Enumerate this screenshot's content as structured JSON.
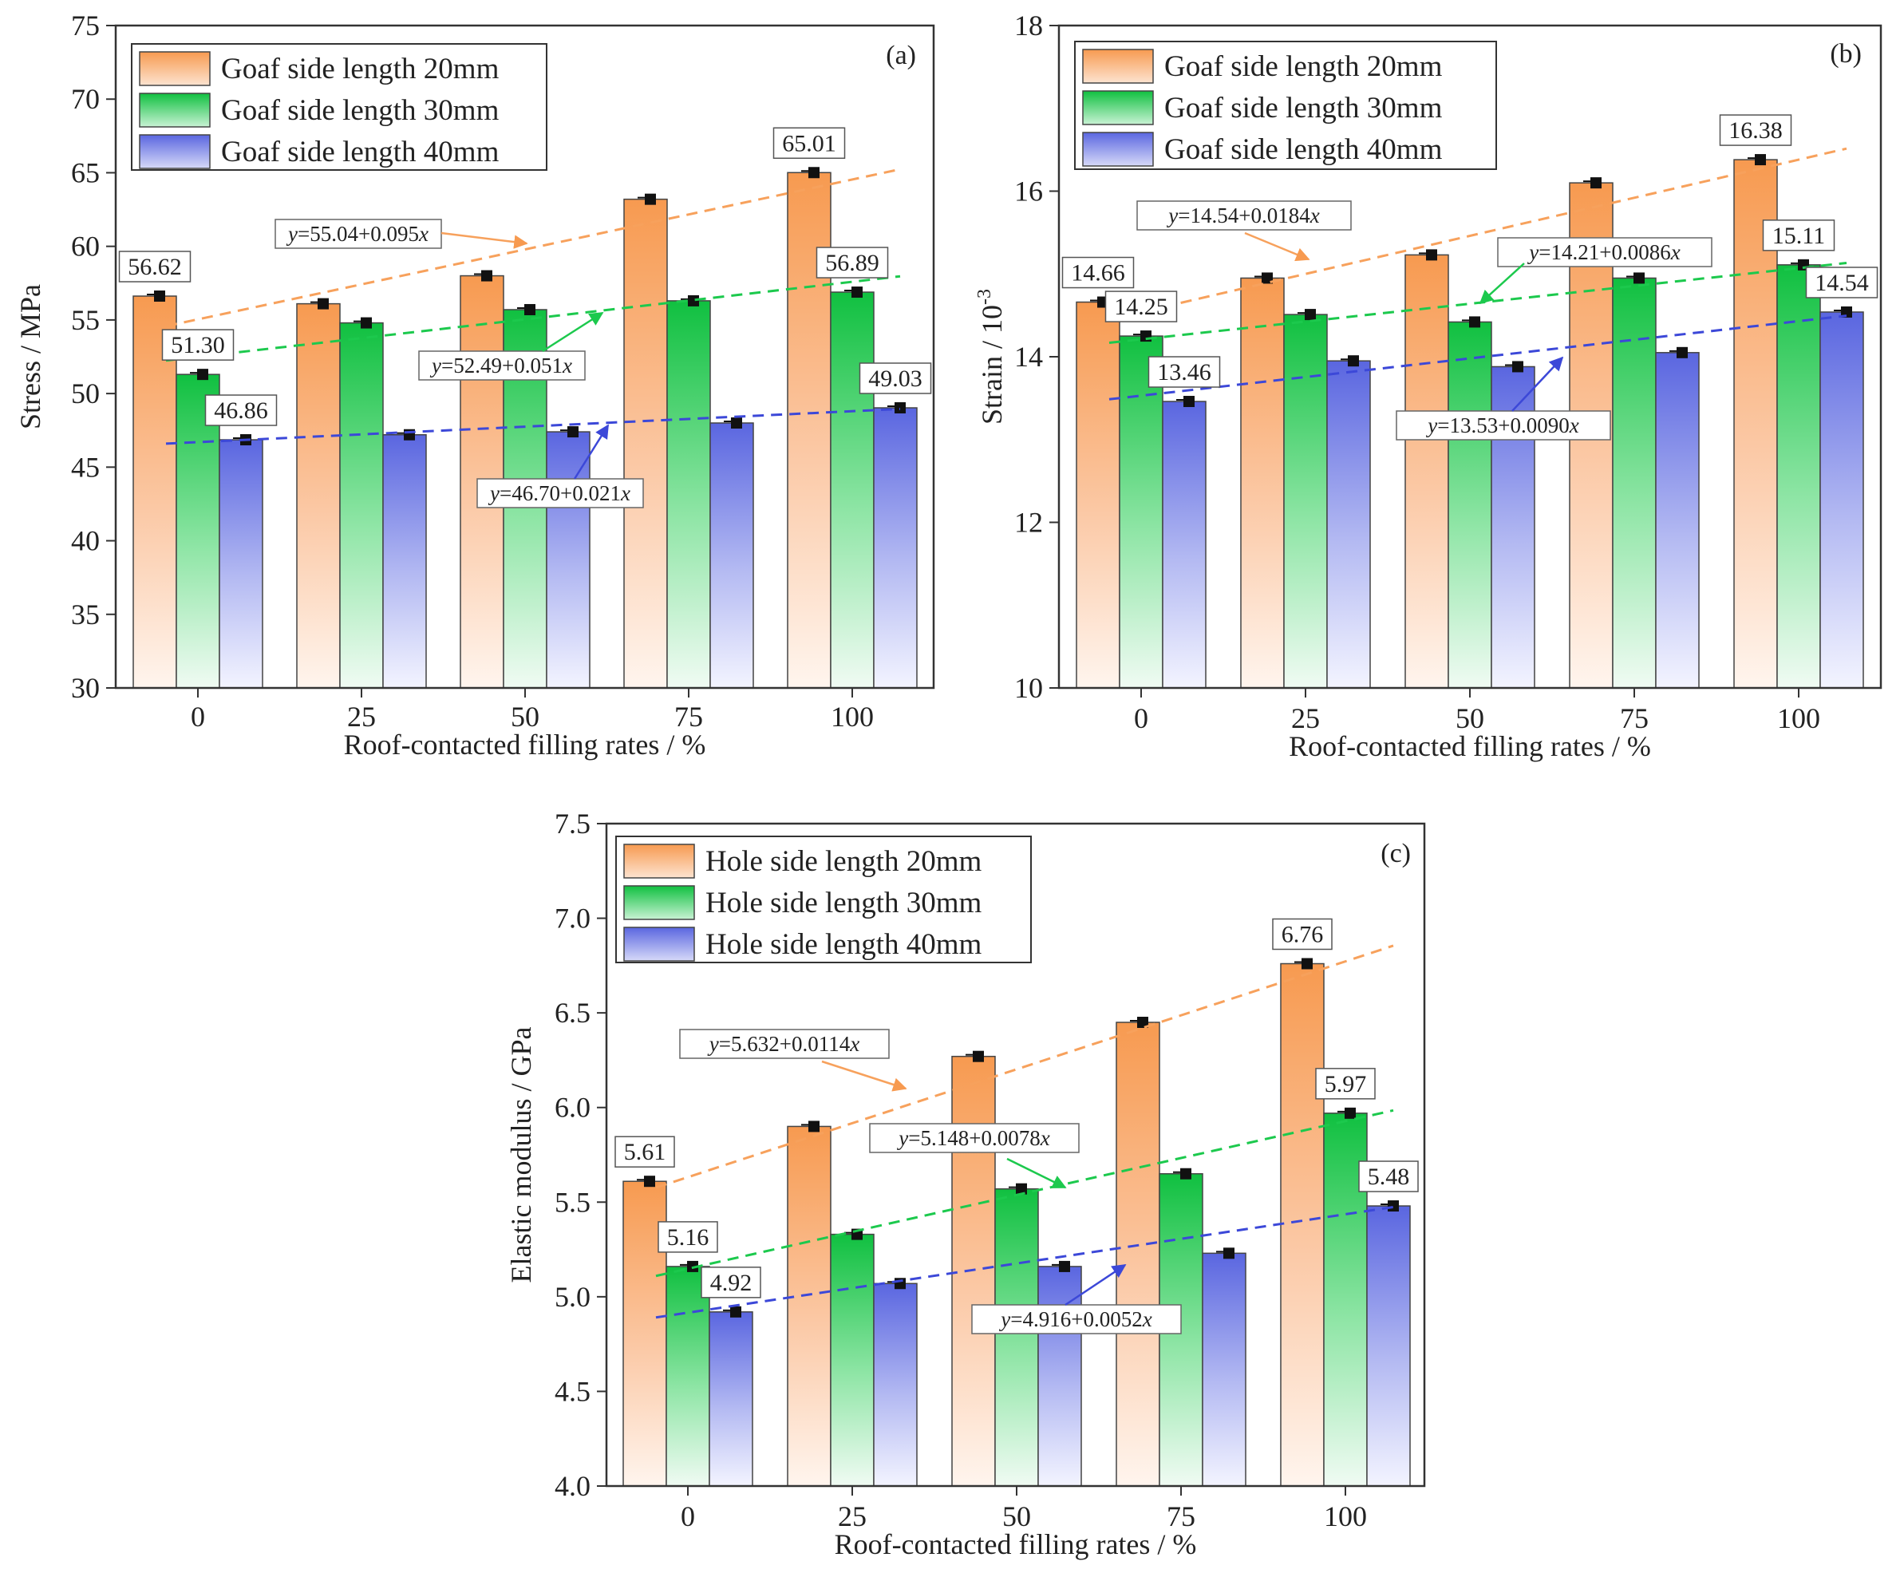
{
  "colors": {
    "orange": "#f7a15c",
    "green": "#1cc94d",
    "blue": "#6872e0",
    "axis": "#333333"
  },
  "chart_data": [
    {
      "type": "bar",
      "panel": "(a)",
      "xlabel": "Roof-contacted filling rates / %",
      "ylabel": "Stress / MPa",
      "ylim": [
        30,
        75
      ],
      "yticks": [
        "30",
        "35",
        "40",
        "45",
        "50",
        "55",
        "60",
        "65",
        "70",
        "75"
      ],
      "categories": [
        "0",
        "25",
        "50",
        "75",
        "100"
      ],
      "series": [
        {
          "name": "Goaf side length 20mm",
          "color": "orange",
          "values": [
            56.62,
            56.1,
            58.0,
            63.2,
            65.01
          ]
        },
        {
          "name": "Goaf side length 30mm",
          "color": "green",
          "values": [
            51.3,
            54.8,
            55.7,
            56.3,
            56.89
          ]
        },
        {
          "name": "Goaf side length 40mm",
          "color": "blue",
          "values": [
            46.86,
            47.2,
            47.4,
            48.0,
            49.03
          ]
        }
      ],
      "data_labels": [
        {
          "series": 0,
          "index": 0,
          "text": "56.62"
        },
        {
          "series": 0,
          "index": 4,
          "text": "65.01"
        },
        {
          "series": 1,
          "index": 0,
          "text": "51.30"
        },
        {
          "series": 1,
          "index": 4,
          "text": "56.89"
        },
        {
          "series": 2,
          "index": 0,
          "text": "46.86"
        },
        {
          "series": 2,
          "index": 4,
          "text": "49.03"
        }
      ],
      "fits": [
        {
          "series": 0,
          "intercept": 55.04,
          "slope": 0.095,
          "equation": "y=55.04+0.095x"
        },
        {
          "series": 1,
          "intercept": 52.49,
          "slope": 0.051,
          "equation": "y=52.49+0.051x"
        },
        {
          "series": 2,
          "intercept": 46.7,
          "slope": 0.021,
          "equation": "y=46.70+0.021x"
        }
      ]
    },
    {
      "type": "bar",
      "panel": "(b)",
      "xlabel": "Roof-contacted filling rates / %",
      "ylabel": "Strain / 10",
      "ylabel_superscript": "-3",
      "ylim": [
        10,
        18
      ],
      "yticks": [
        "10",
        "12",
        "14",
        "16",
        "18"
      ],
      "categories": [
        "0",
        "25",
        "50",
        "75",
        "100"
      ],
      "series": [
        {
          "name": "Goaf side length 20mm",
          "color": "orange",
          "values": [
            14.66,
            14.95,
            15.23,
            16.1,
            16.38
          ]
        },
        {
          "name": "Goaf side length 30mm",
          "color": "green",
          "values": [
            14.25,
            14.51,
            14.42,
            14.95,
            15.11
          ]
        },
        {
          "name": "Goaf side length 40mm",
          "color": "blue",
          "values": [
            13.46,
            13.95,
            13.88,
            14.05,
            14.54
          ]
        }
      ],
      "data_labels": [
        {
          "series": 0,
          "index": 0,
          "text": "14.66"
        },
        {
          "series": 0,
          "index": 4,
          "text": "16.38"
        },
        {
          "series": 1,
          "index": 0,
          "text": "14.25"
        },
        {
          "series": 1,
          "index": 4,
          "text": "15.11"
        },
        {
          "series": 2,
          "index": 0,
          "text": "13.46"
        },
        {
          "series": 2,
          "index": 4,
          "text": "14.54"
        }
      ],
      "fits": [
        {
          "series": 0,
          "intercept": 14.54,
          "slope": 0.0184,
          "equation": "y=14.54+0.0184x"
        },
        {
          "series": 1,
          "intercept": 14.21,
          "slope": 0.0086,
          "equation": "y=14.21+0.0086x"
        },
        {
          "series": 2,
          "intercept": 13.53,
          "slope": 0.009,
          "equation": "y=13.53+0.0090x"
        }
      ]
    },
    {
      "type": "bar",
      "panel": "(c)",
      "xlabel": "Roof-contacted filling rates / %",
      "ylabel": "Elastic modulus / GPa",
      "ylim": [
        4.0,
        7.5
      ],
      "yticks": [
        "4.0",
        "4.5",
        "5.0",
        "5.5",
        "6.0",
        "6.5",
        "7.0",
        "7.5"
      ],
      "categories": [
        "0",
        "25",
        "50",
        "75",
        "100"
      ],
      "series": [
        {
          "name": "Hole side length 20mm",
          "color": "orange",
          "values": [
            5.61,
            5.9,
            6.27,
            6.45,
            6.76
          ]
        },
        {
          "name": "Hole side length 30mm",
          "color": "green",
          "values": [
            5.16,
            5.33,
            5.57,
            5.65,
            5.97
          ]
        },
        {
          "name": "Hole side length 40mm",
          "color": "blue",
          "values": [
            4.92,
            5.07,
            5.16,
            5.23,
            5.48
          ]
        }
      ],
      "data_labels": [
        {
          "series": 0,
          "index": 0,
          "text": "5.61"
        },
        {
          "series": 0,
          "index": 4,
          "text": "6.76"
        },
        {
          "series": 1,
          "index": 0,
          "text": "5.16"
        },
        {
          "series": 1,
          "index": 4,
          "text": "5.97"
        },
        {
          "series": 2,
          "index": 0,
          "text": "4.92"
        },
        {
          "series": 2,
          "index": 4,
          "text": "5.48"
        }
      ],
      "fits": [
        {
          "series": 0,
          "intercept": 5.632,
          "slope": 0.0114,
          "equation": "y=5.632+0.0114x"
        },
        {
          "series": 1,
          "intercept": 5.148,
          "slope": 0.0078,
          "equation": "y=5.148+0.0078x"
        },
        {
          "series": 2,
          "intercept": 4.916,
          "slope": 0.0052,
          "equation": "y=4.916+0.0052x"
        }
      ]
    }
  ]
}
